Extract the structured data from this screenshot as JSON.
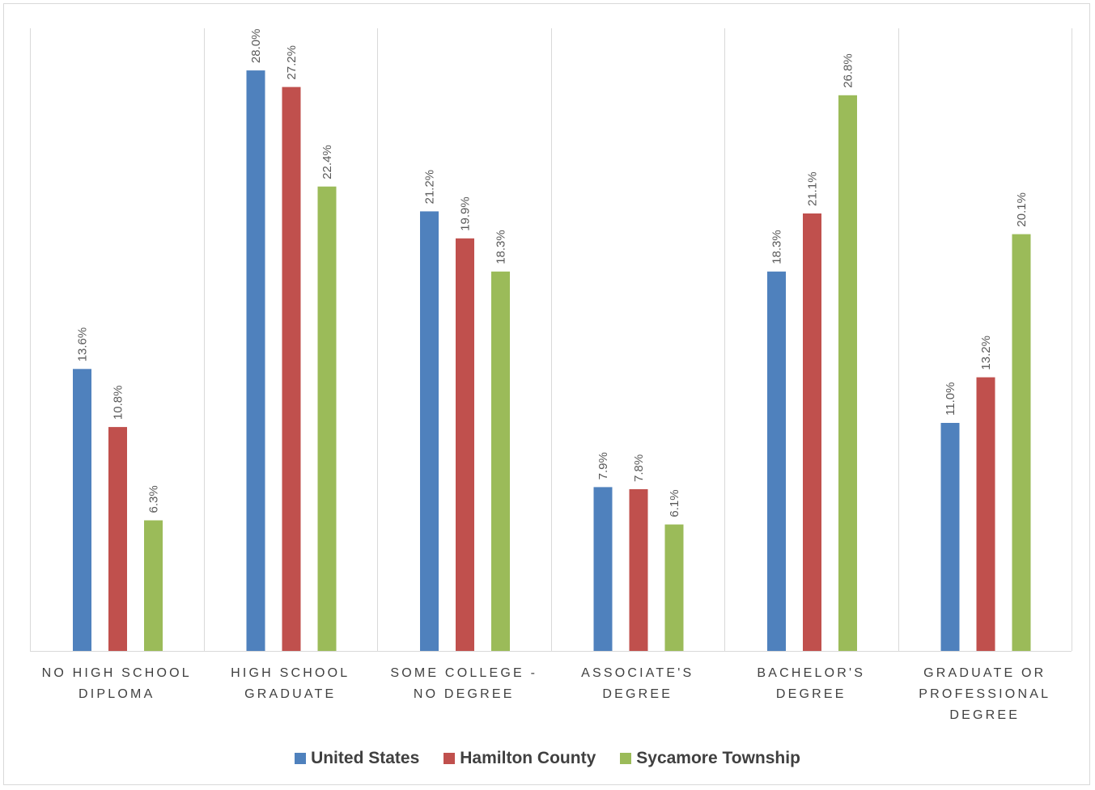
{
  "chart_data": {
    "type": "bar",
    "title": "",
    "xlabel": "",
    "ylabel": "",
    "ylim": [
      0,
      30
    ],
    "grid": "vertical category separators",
    "legend_position": "bottom",
    "categories": [
      [
        "NO HIGH SCHOOL",
        "DIPLOMA"
      ],
      [
        "HIGH SCHOOL",
        "GRADUATE"
      ],
      [
        "SOME COLLEGE -",
        "NO DEGREE"
      ],
      [
        "ASSOCIATE'S",
        "DEGREE"
      ],
      [
        "BACHELOR'S",
        "DEGREE"
      ],
      [
        "GRADUATE OR",
        "PROFESSIONAL",
        "DEGREE"
      ]
    ],
    "series": [
      {
        "name": "United States",
        "color": "#4f81bd",
        "values": [
          13.6,
          28.0,
          21.2,
          7.9,
          18.3,
          11.0
        ],
        "labels": [
          "13.6%",
          "28.0%",
          "21.2%",
          "7.9%",
          "18.3%",
          "11.0%"
        ]
      },
      {
        "name": "Hamilton County",
        "color": "#c0504d",
        "values": [
          10.8,
          27.2,
          19.9,
          7.8,
          21.1,
          13.2
        ],
        "labels": [
          "10.8%",
          "27.2%",
          "19.9%",
          "7.8%",
          "21.1%",
          "13.2%"
        ]
      },
      {
        "name": "Sycamore Township",
        "color": "#9bbb59",
        "values": [
          6.3,
          22.4,
          18.3,
          6.1,
          26.8,
          20.1
        ],
        "labels": [
          "6.3%",
          "22.4%",
          "18.3%",
          "6.1%",
          "26.8%",
          "20.1%"
        ]
      }
    ]
  }
}
